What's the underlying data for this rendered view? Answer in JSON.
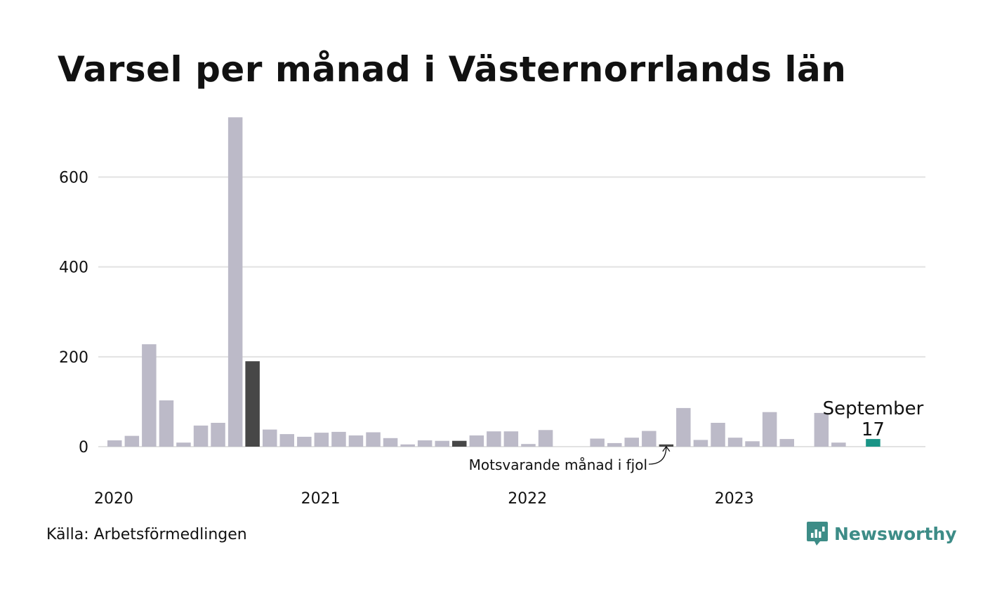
{
  "title": "Varsel per månad i Västernorrlands län",
  "source": "Källa: Arbetsförmedlingen",
  "brand": "Newsworthy",
  "colors": {
    "bar": "#bcbac8",
    "highlight_past": "#474747",
    "current": "#1a9486",
    "grid": "#e2e2e2",
    "brand": "#3d8c87"
  },
  "chart_data": {
    "type": "bar",
    "xlabel": "",
    "ylabel": "",
    "ylim": [
      0,
      740
    ],
    "yticks": [
      0,
      200,
      400,
      600
    ],
    "year_labels": [
      {
        "label": "2020",
        "month_index": 0
      },
      {
        "label": "2021",
        "month_index": 12
      },
      {
        "label": "2022",
        "month_index": 24
      },
      {
        "label": "2023",
        "month_index": 36
      }
    ],
    "start_month": "2020-01",
    "values": [
      14,
      24,
      228,
      103,
      9,
      47,
      53,
      733,
      190,
      38,
      28,
      22,
      31,
      33,
      25,
      32,
      19,
      5,
      14,
      13,
      13,
      25,
      34,
      34,
      6,
      37,
      0,
      0,
      18,
      8,
      20,
      35,
      5,
      86,
      15,
      53,
      20,
      12,
      77,
      17,
      0,
      75,
      9,
      0,
      17
    ],
    "highlight_past_indices": [
      8,
      20,
      32
    ],
    "current_index": 44,
    "current_label": "September",
    "current_value_label": "17",
    "annotation": "Motsvarande månad i fjol",
    "annotation_target_index": 32
  }
}
